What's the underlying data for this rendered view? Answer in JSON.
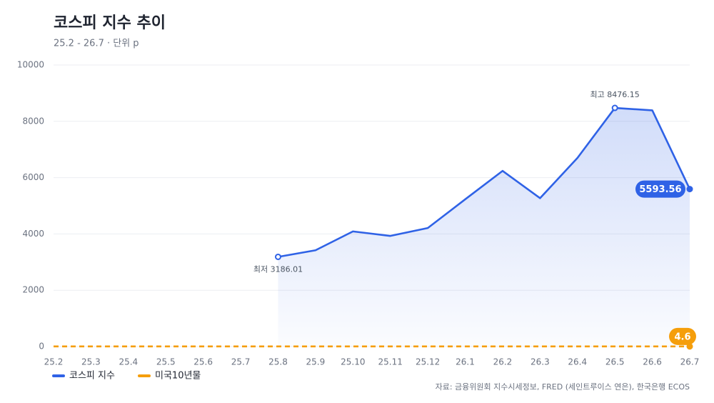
{
  "chart_data": {
    "type": "line",
    "title": "코스피 지수 추이",
    "subtitle": "25.2 - 26.7 · 단위 p",
    "source": "자료: 금융위원회 지수시세정보, FRED (세인트루이스 연은), 한국은행 ECOS",
    "categories": [
      "25.2",
      "25.3",
      "25.4",
      "25.5",
      "25.6",
      "25.7",
      "25.8",
      "25.9",
      "25.10",
      "25.11",
      "25.12",
      "26.1",
      "26.2",
      "26.3",
      "26.4",
      "26.5",
      "26.6",
      "26.7"
    ],
    "series": [
      {
        "name": "코스피 지수",
        "color": "#2f62e6",
        "values": [
          null,
          null,
          null,
          null,
          null,
          null,
          3186.01,
          3420,
          4090,
          3930,
          4210,
          5230,
          6240,
          5270,
          6700,
          8476.15,
          8390,
          5593.56
        ],
        "value_labels": [
          null,
          null,
          null,
          null,
          null,
          null,
          "최저 3186.01",
          null,
          null,
          null,
          null,
          null,
          null,
          null,
          null,
          "최고 8476.15",
          null,
          "5593.56"
        ]
      },
      {
        "name": "미국10년물",
        "color": "#f59e0b",
        "values": [
          4.5,
          4.3,
          4.4,
          4.2,
          4.3,
          4.4,
          4.2,
          4.1,
          4.0,
          4.2,
          4.1,
          4.2,
          4.2,
          4.0,
          4.3,
          4.4,
          4.5,
          4.6
        ],
        "value_labels": [
          null,
          null,
          null,
          null,
          null,
          null,
          null,
          null,
          null,
          null,
          null,
          null,
          null,
          null,
          null,
          null,
          null,
          "4.6"
        ]
      }
    ],
    "ylim": [
      0,
      10000
    ],
    "yticks": [
      0,
      2000,
      4000,
      6000,
      8000,
      10000
    ],
    "grid": true,
    "legend": "bottom-left"
  }
}
